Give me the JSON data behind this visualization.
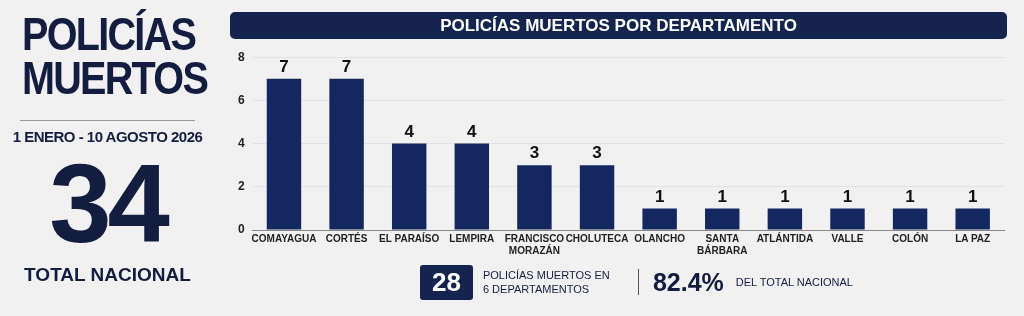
{
  "chart_data": {
    "type": "bar",
    "title": "POLICÍAS MUERTOS POR DEPARTAMENTO",
    "categories": [
      "COMAYAGUA",
      "CORTÉS",
      "EL PARAÍSO",
      "LEMPIRA",
      "FRANCISCO MORAZÁN",
      "CHOLUTECA",
      "OLANCHO",
      "SANTA BÁRBARA",
      "ATLÁNTIDA",
      "VALLE",
      "COLÓN",
      "LA PAZ"
    ],
    "values": [
      7,
      7,
      4,
      4,
      3,
      3,
      1,
      1,
      1,
      1,
      1,
      1
    ],
    "color": "#14275e",
    "ylim": [
      0,
      8
    ],
    "yticks": [
      0,
      2,
      4,
      6,
      8
    ],
    "grid": "y",
    "data_labels": true,
    "legend": false,
    "annotations": [
      "POLICÍAS MUERTOS",
      "1 ENERO - 10 AGOSTO 2026",
      "34",
      "TOTAL NACIONAL",
      "28",
      "POLICÍAS MUERTOS EN 6 DEPARTAMENTOS",
      "82.4%",
      "DEL TOTAL NACIONAL"
    ]
  }
}
